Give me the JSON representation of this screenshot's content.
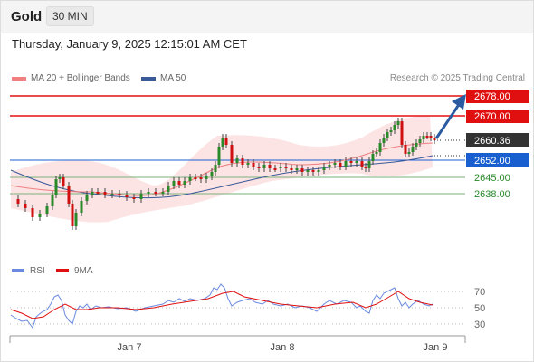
{
  "header": {
    "symbol": "Gold",
    "timeframe": "30 MIN"
  },
  "datetime": "Thursday, January 9, 2025 12:15:01 AM CET",
  "legend": {
    "ma20": {
      "label": "MA 20 + Bollinger Bands",
      "color": "#f08080"
    },
    "ma50": {
      "label": "MA 50",
      "color": "#3a5a9a"
    }
  },
  "copyright": "Research © 2025 Trading Central",
  "levels": [
    {
      "label": "2678.00",
      "kind": "resistance",
      "color": "#e01010"
    },
    {
      "label": "2670.00",
      "kind": "resistance",
      "color": "#e01010"
    },
    {
      "label": "2660.36",
      "kind": "last",
      "color": "#333333"
    },
    {
      "label": "2652.00",
      "kind": "pivot",
      "color": "#1a5fd0"
    },
    {
      "label": "2645.00",
      "kind": "support",
      "color": "#2a8a2a"
    },
    {
      "label": "2638.00",
      "kind": "support",
      "color": "#2a8a2a"
    }
  ],
  "rsi_legend": {
    "rsi": {
      "label": "RSI",
      "color": "#6a8ae0"
    },
    "ma9": {
      "label": "9MA",
      "color": "#e01010"
    }
  },
  "rsi_levels": [
    "70",
    "50",
    "30"
  ],
  "x_labels": [
    "Jan 7",
    "Jan 8",
    "Jan 9"
  ]
}
